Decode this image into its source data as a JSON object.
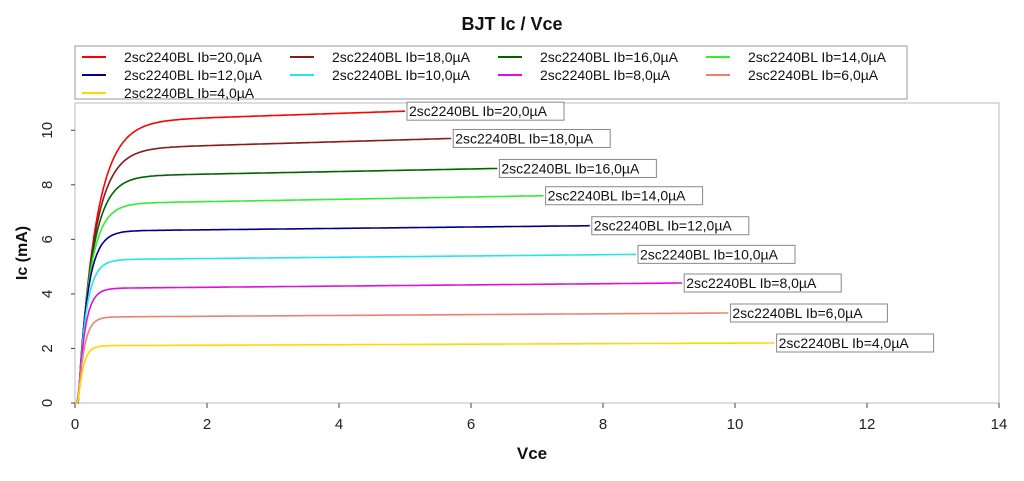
{
  "chart_data": {
    "type": "line",
    "title": "BJT Ic / Vce",
    "xlabel": "Vce",
    "ylabel": "Ic (mA)",
    "xlim": [
      0,
      14
    ],
    "ylim": [
      0,
      11
    ],
    "xticks": [
      "0",
      "2",
      "4",
      "6",
      "8",
      "10",
      "12",
      "14"
    ],
    "yticks": [
      "0",
      "2",
      "4",
      "6",
      "8",
      "10"
    ],
    "grid": false,
    "legend_position": "top",
    "series": [
      {
        "name": "2sc2240BL Ib=20,0µA",
        "color": "#ff0000",
        "vmax": 5.0,
        "sat": 10.3,
        "end": 10.7,
        "knee": 0.85
      },
      {
        "name": "2sc2240BL Ib=18,0µA",
        "color": "#8b1a1a",
        "vmax": 5.7,
        "sat": 9.3,
        "end": 9.7,
        "knee": 0.75
      },
      {
        "name": "2sc2240BL Ib=16,0µA",
        "color": "#006400",
        "vmax": 6.4,
        "sat": 8.3,
        "end": 8.6,
        "knee": 0.65
      },
      {
        "name": "2sc2240BL Ib=14,0µA",
        "color": "#33ee33",
        "vmax": 7.1,
        "sat": 7.3,
        "end": 7.6,
        "knee": 0.55
      },
      {
        "name": "2sc2240BL Ib=12,0µA",
        "color": "#00008b",
        "vmax": 7.8,
        "sat": 6.3,
        "end": 6.5,
        "knee": 0.45
      },
      {
        "name": "2sc2240BL Ib=10,0µA",
        "color": "#22e5f0",
        "vmax": 8.5,
        "sat": 5.25,
        "end": 5.45,
        "knee": 0.38
      },
      {
        "name": "2sc2240BL Ib=8,0µA",
        "color": "#dd11dd",
        "vmax": 9.2,
        "sat": 4.2,
        "end": 4.4,
        "knee": 0.32
      },
      {
        "name": "2sc2240BL Ib=6,0µA",
        "color": "#f08070",
        "vmax": 9.9,
        "sat": 3.15,
        "end": 3.3,
        "knee": 0.28
      },
      {
        "name": "2sc2240BL Ib=4,0µA",
        "color": "#ffd700",
        "vmax": 10.6,
        "sat": 2.1,
        "end": 2.2,
        "knee": 0.24
      }
    ]
  }
}
